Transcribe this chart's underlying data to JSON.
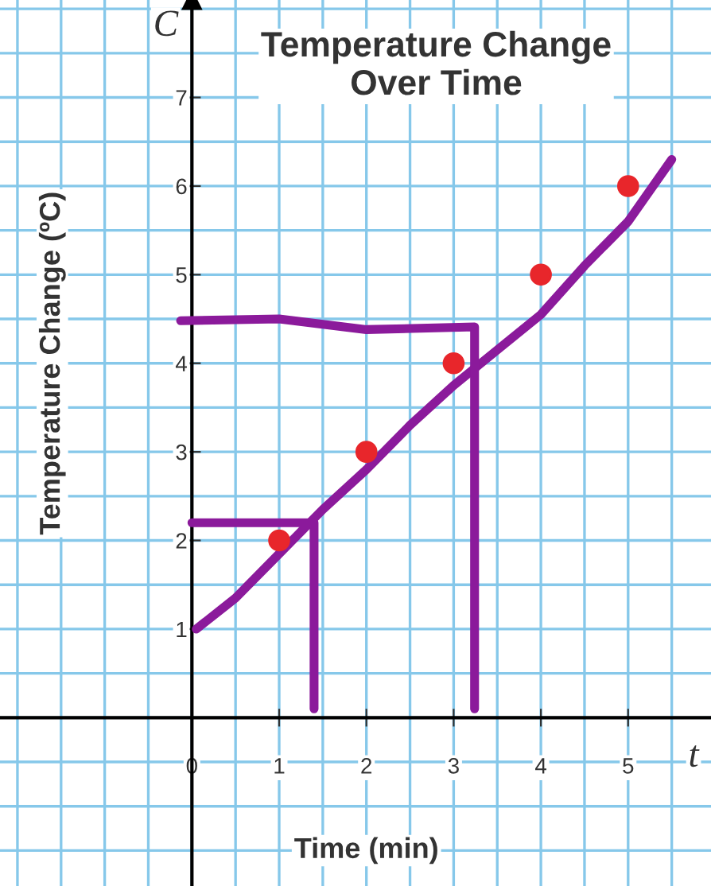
{
  "chart_data": {
    "type": "scatter",
    "title": "Temperature Change\nOver Time",
    "xlabel": "Time (min)",
    "ylabel": "Temperature Change (ºC)",
    "series": [
      {
        "color": "#e8262b",
        "x": [
          1,
          2,
          3,
          4,
          5
        ],
        "values": [
          2,
          3,
          4,
          5,
          6
        ],
        "marker": "circle"
      },
      {
        "type": "line",
        "color": "#8b1a9b",
        "x": [
          0.05,
          0.5,
          1,
          1.5,
          2,
          2.5,
          3,
          3.5,
          4,
          4.5,
          5,
          5.5
        ],
        "values": [
          1.0,
          1.35,
          1.85,
          2.35,
          2.8,
          3.3,
          3.75,
          4.15,
          4.55,
          5.1,
          5.6,
          6.3
        ]
      },
      {
        "type": "line",
        "color": "#8b1a9b",
        "x": [
          0,
          0.7,
          1.4,
          1.4
        ],
        "values": [
          2.2,
          2.2,
          2.2,
          0.1
        ]
      },
      {
        "type": "line",
        "color": "#8b1a9b",
        "x": [
          -0.13,
          1,
          2,
          3.24,
          3.24
        ],
        "values": [
          4.48,
          4.5,
          4.38,
          4.41,
          0.1
        ]
      }
    ],
    "xlim": [
      -2.2,
      5.95
    ],
    "ylim": [
      -1.9,
      8.1
    ],
    "xticks": [
      0,
      1,
      2,
      3,
      4,
      5
    ],
    "yticks": [
      1,
      2,
      3,
      4,
      5,
      6,
      7
    ],
    "grid": true,
    "annotations": [
      "C",
      "t"
    ]
  }
}
